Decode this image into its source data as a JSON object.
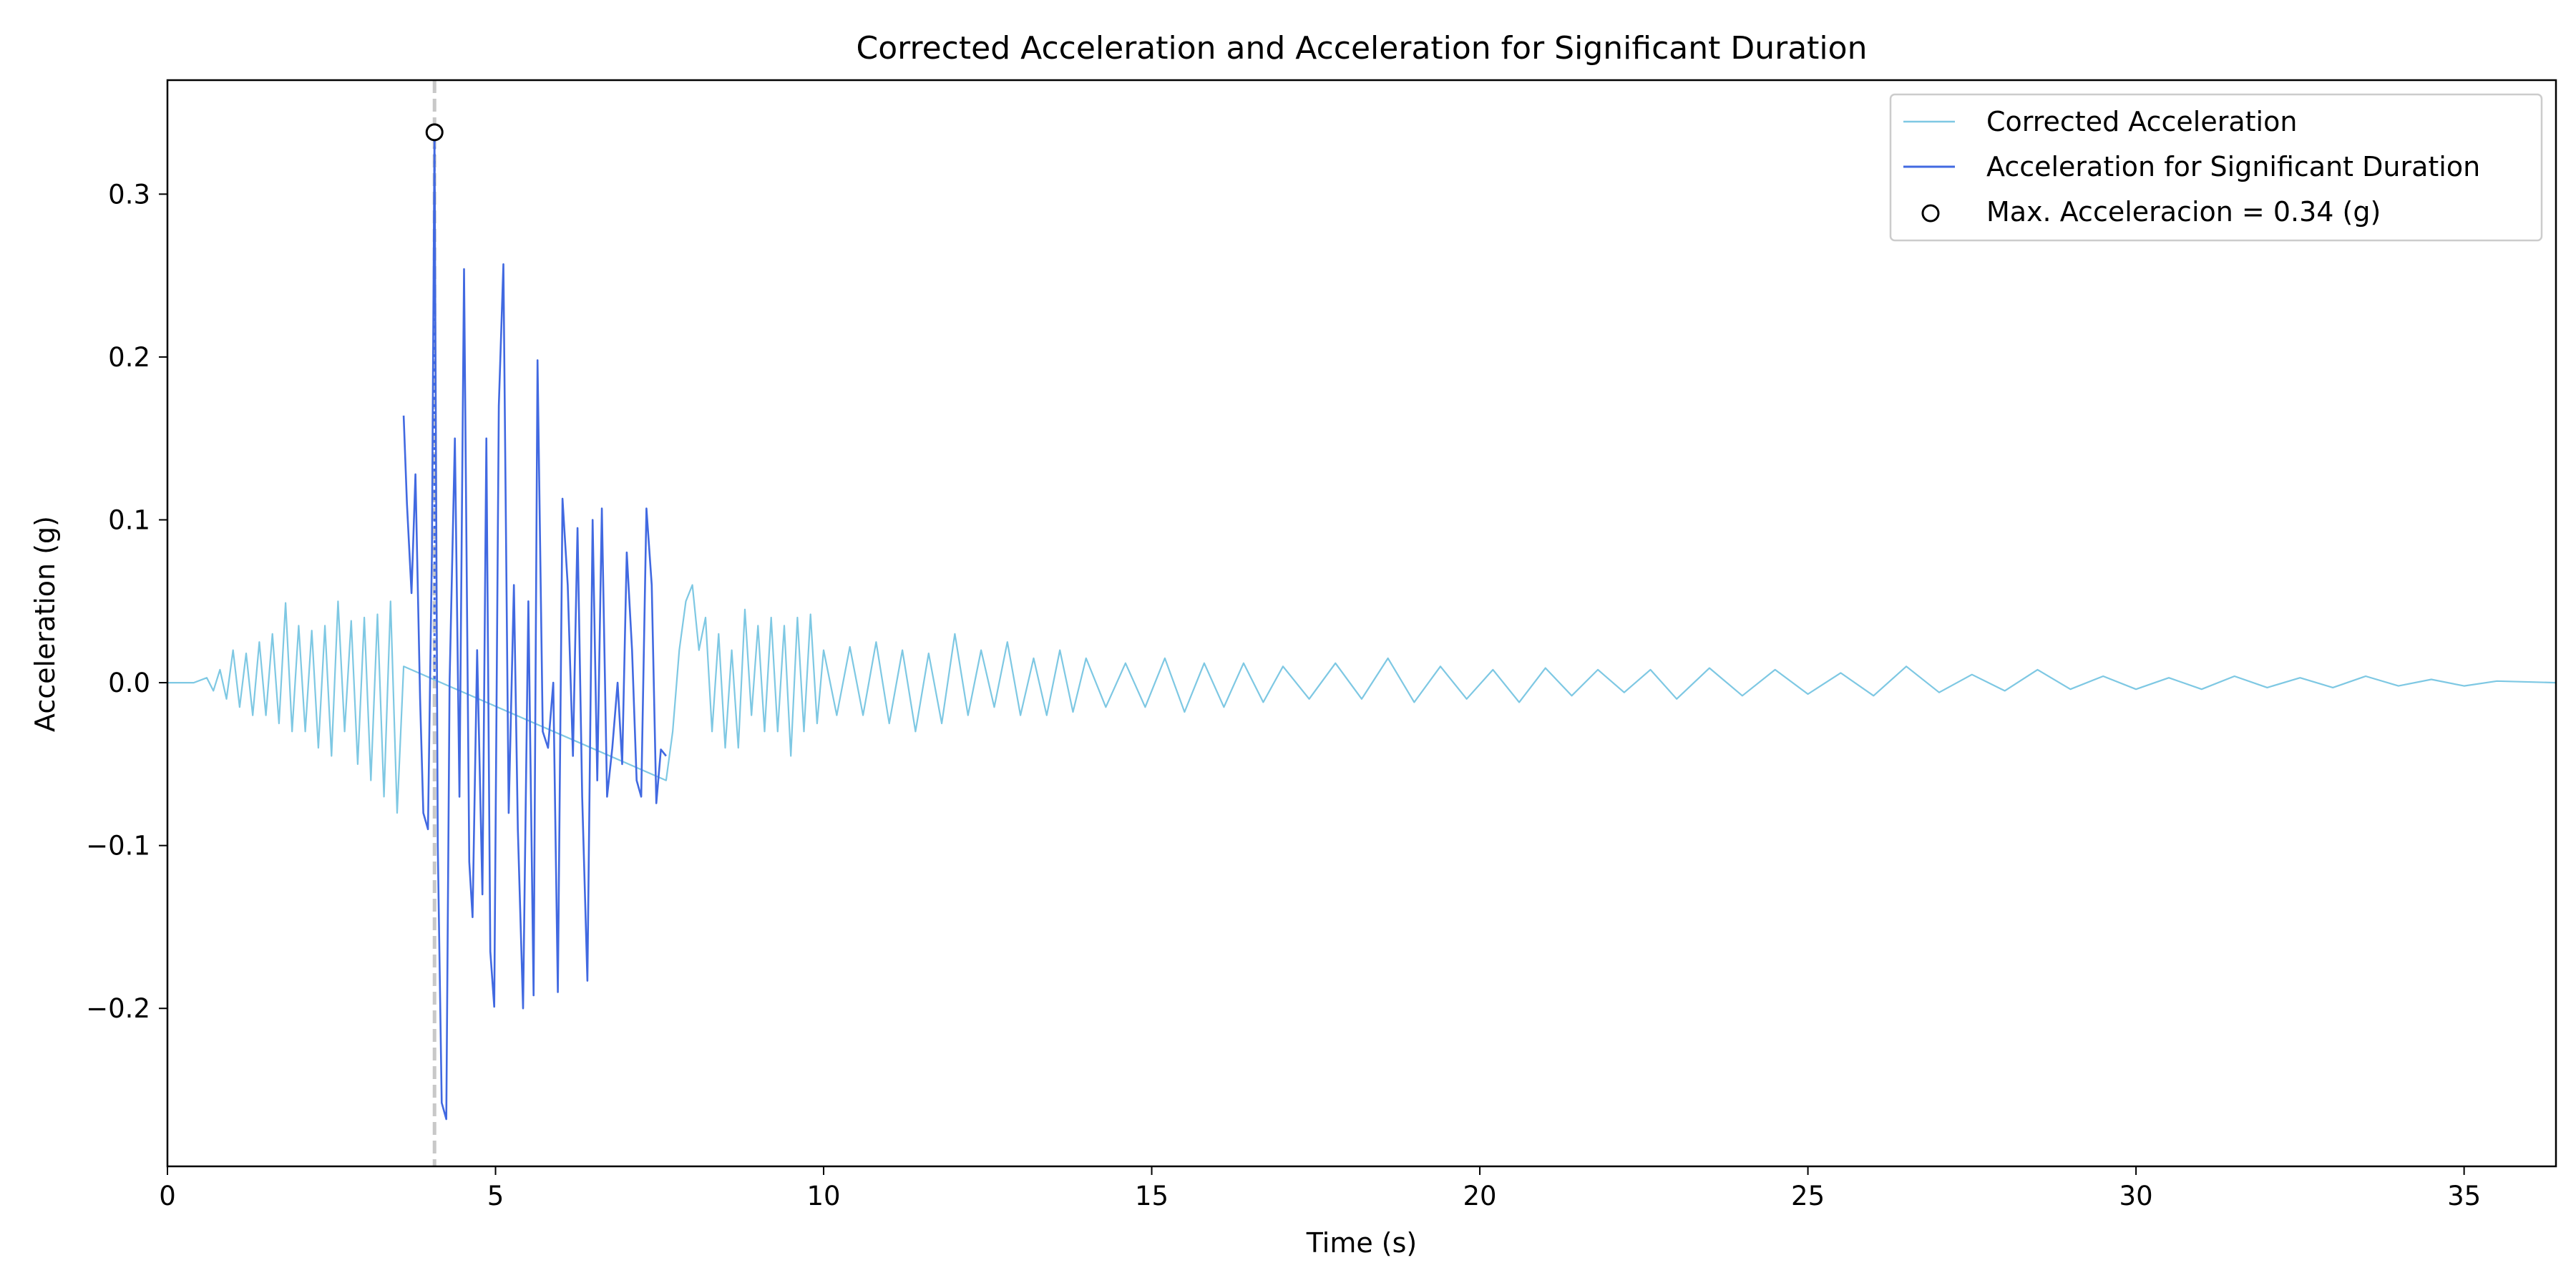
{
  "chart_data": {
    "type": "line",
    "title": "Corrected Acceleration and Acceleration for Significant Duration",
    "xlabel": "Time (s)",
    "ylabel": "Acceleration (g)",
    "xlim": [
      0,
      36.4
    ],
    "ylim": [
      -0.297,
      0.37
    ],
    "xticks": [
      0,
      5,
      10,
      15,
      20,
      25,
      30,
      35
    ],
    "xtick_labels": [
      "0",
      "5",
      "10",
      "15",
      "20",
      "25",
      "30",
      "35"
    ],
    "yticks": [
      -0.2,
      -0.1,
      0.0,
      0.1,
      0.2,
      0.3
    ],
    "ytick_labels": [
      "−0.2",
      "−0.1",
      "0.0",
      "0.1",
      "0.2",
      "0.3"
    ],
    "grid": false,
    "legend_position": "top-right",
    "significant_duration": [
      3.6,
      7.6
    ],
    "peak_time": 4.07,
    "series": [
      {
        "name": "Corrected Acceleration",
        "color": "#7ec8e3",
        "x": [
          0.0,
          0.4,
          0.6,
          0.7,
          0.8,
          0.9,
          1.0,
          1.1,
          1.2,
          1.3,
          1.4,
          1.5,
          1.6,
          1.7,
          1.8,
          1.9,
          2.0,
          2.1,
          2.2,
          2.3,
          2.4,
          2.5,
          2.6,
          2.7,
          2.8,
          2.9,
          3.0,
          3.1,
          3.2,
          3.3,
          3.4,
          3.5,
          3.6,
          7.6,
          7.7,
          7.8,
          7.9,
          8.0,
          8.1,
          8.2,
          8.3,
          8.4,
          8.5,
          8.6,
          8.7,
          8.8,
          8.9,
          9.0,
          9.1,
          9.2,
          9.3,
          9.4,
          9.5,
          9.6,
          9.7,
          9.8,
          9.9,
          10.0,
          10.2,
          10.4,
          10.6,
          10.8,
          11.0,
          11.2,
          11.4,
          11.6,
          11.8,
          12.0,
          12.2,
          12.4,
          12.6,
          12.8,
          13.0,
          13.2,
          13.4,
          13.6,
          13.8,
          14.0,
          14.3,
          14.6,
          14.9,
          15.2,
          15.5,
          15.8,
          16.1,
          16.4,
          16.7,
          17.0,
          17.4,
          17.8,
          18.2,
          18.6,
          19.0,
          19.4,
          19.8,
          20.2,
          20.6,
          21.0,
          21.4,
          21.8,
          22.2,
          22.6,
          23.0,
          23.5,
          24.0,
          24.5,
          25.0,
          25.5,
          26.0,
          26.5,
          27.0,
          27.5,
          28.0,
          28.5,
          29.0,
          29.5,
          30.0,
          30.5,
          31.0,
          31.5,
          32.0,
          32.5,
          33.0,
          33.5,
          34.0,
          34.5,
          35.0,
          35.5,
          36.4
        ],
        "y": [
          0.0,
          0.0,
          0.003,
          -0.005,
          0.008,
          -0.01,
          0.02,
          -0.015,
          0.018,
          -0.02,
          0.025,
          -0.02,
          0.03,
          -0.025,
          0.049,
          -0.03,
          0.035,
          -0.03,
          0.032,
          -0.04,
          0.035,
          -0.045,
          0.05,
          -0.03,
          0.038,
          -0.05,
          0.04,
          -0.06,
          0.042,
          -0.07,
          0.05,
          -0.08,
          0.01,
          -0.06,
          -0.03,
          0.02,
          0.05,
          0.06,
          0.02,
          0.04,
          -0.03,
          0.03,
          -0.04,
          0.02,
          -0.04,
          0.045,
          -0.02,
          0.035,
          -0.03,
          0.04,
          -0.03,
          0.035,
          -0.045,
          0.04,
          -0.03,
          0.042,
          -0.025,
          0.02,
          -0.02,
          0.022,
          -0.02,
          0.025,
          -0.025,
          0.02,
          -0.03,
          0.018,
          -0.025,
          0.03,
          -0.02,
          0.02,
          -0.015,
          0.025,
          -0.02,
          0.015,
          -0.02,
          0.02,
          -0.018,
          0.015,
          -0.015,
          0.012,
          -0.015,
          0.015,
          -0.018,
          0.012,
          -0.015,
          0.012,
          -0.012,
          0.01,
          -0.01,
          0.012,
          -0.01,
          0.015,
          -0.012,
          0.01,
          -0.01,
          0.008,
          -0.012,
          0.009,
          -0.008,
          0.008,
          -0.006,
          0.008,
          -0.01,
          0.009,
          -0.008,
          0.008,
          -0.007,
          0.006,
          -0.008,
          0.01,
          -0.006,
          0.005,
          -0.005,
          0.008,
          -0.004,
          0.004,
          -0.004,
          0.003,
          -0.004,
          0.004,
          -0.003,
          0.003,
          -0.003,
          0.004,
          -0.002,
          0.002,
          -0.002,
          0.001,
          0.0
        ]
      },
      {
        "name": "Acceleration for Significant Duration",
        "color": "#4169e1",
        "x": [
          3.6,
          3.65,
          3.72,
          3.78,
          3.85,
          3.9,
          3.97,
          4.03,
          4.07,
          4.12,
          4.18,
          4.25,
          4.3,
          4.38,
          4.45,
          4.52,
          4.6,
          4.65,
          4.72,
          4.8,
          4.86,
          4.92,
          4.98,
          5.05,
          5.12,
          5.2,
          5.28,
          5.34,
          5.42,
          5.5,
          5.58,
          5.64,
          5.72,
          5.8,
          5.88,
          5.95,
          6.02,
          6.1,
          6.18,
          6.25,
          6.32,
          6.4,
          6.48,
          6.55,
          6.62,
          6.7,
          6.78,
          6.86,
          6.93,
          7.0,
          7.08,
          7.15,
          7.22,
          7.3,
          7.38,
          7.45,
          7.52,
          7.6
        ],
        "y": [
          0.164,
          0.11,
          0.055,
          0.128,
          -0.01,
          -0.08,
          -0.09,
          0.08,
          0.338,
          -0.1,
          -0.258,
          -0.268,
          0.0,
          0.15,
          -0.07,
          0.254,
          -0.11,
          -0.144,
          0.02,
          -0.13,
          0.15,
          -0.165,
          -0.199,
          0.17,
          0.257,
          -0.08,
          0.06,
          -0.09,
          -0.2,
          0.05,
          -0.192,
          0.198,
          -0.03,
          -0.04,
          0.0,
          -0.19,
          0.113,
          0.06,
          -0.045,
          0.095,
          -0.07,
          -0.183,
          0.1,
          -0.06,
          0.107,
          -0.07,
          -0.04,
          0.0,
          -0.05,
          0.08,
          0.02,
          -0.06,
          -0.07,
          0.107,
          0.06,
          -0.074,
          -0.041,
          -0.045
        ]
      }
    ],
    "peak": {
      "name": "Max. Acceleracion = 0.34 (g)",
      "x": 4.07,
      "y": 0.338
    }
  }
}
